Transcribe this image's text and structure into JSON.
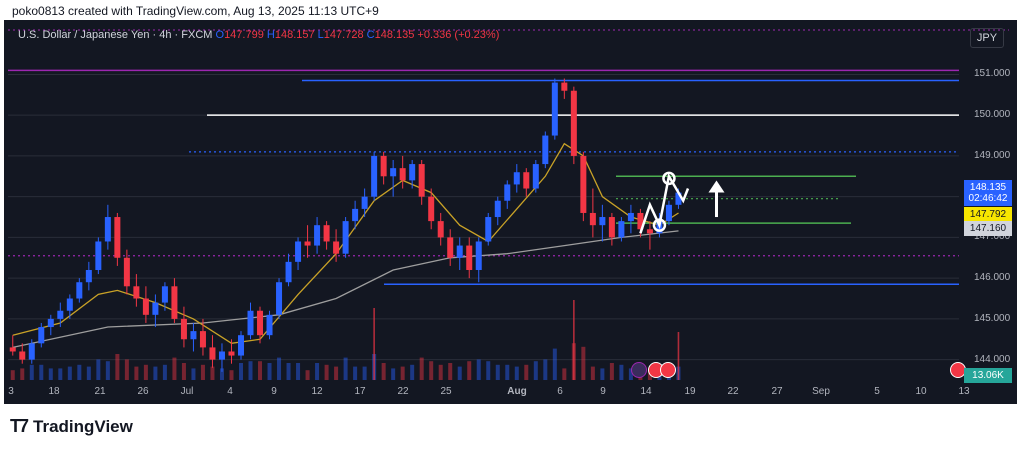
{
  "header_line": "poko0813 created with TradingView.com, Aug 13, 2025 11:13 UTC+9",
  "symbol": {
    "name": "U.S. Dollar / Japanese Yen · 4h · FXCM",
    "open_label": "O",
    "open": "147.799",
    "high_label": "H",
    "high": "148.157",
    "low_label": "L",
    "low": "147.728",
    "close_label": "C",
    "close": "148.135",
    "change": "+0.336 (+0.23%)"
  },
  "currency": "JPY",
  "brand": "TradingView",
  "volume_badge": "13.06K",
  "colors": {
    "up": "#2962ff",
    "down": "#f23645",
    "bg": "#131722",
    "ma_short": "#c9a227",
    "ma_long": "#9e9e9e"
  },
  "chart_data": {
    "type": "candlestick",
    "y_ticks": [
      "151.000",
      "150.000",
      "149.000",
      "148.000",
      "147.000",
      "146.000",
      "145.000",
      "144.000"
    ],
    "ylim": [
      143.5,
      151.6
    ],
    "x_ticks": [
      "3",
      "18",
      "21",
      "26",
      "Jul",
      "4",
      "9",
      "12",
      "17",
      "22",
      "25",
      "Aug",
      "6",
      "9",
      "14",
      "19",
      "22",
      "27",
      "Sep",
      "5",
      "10",
      "13"
    ],
    "price_tags": [
      {
        "value": "148.135",
        "extra": "02:46:42",
        "color": "#2962ff",
        "text_color": "#ffffff"
      },
      {
        "value": "147.792",
        "color": "#f7e600",
        "text_color": "#131722"
      },
      {
        "value": "147.160",
        "color": "#d1d4dc",
        "text_color": "#131722"
      }
    ],
    "horizontal_levels": [
      {
        "price": 151.1,
        "color": "#9c27b0",
        "style": "solid"
      },
      {
        "price": 150.85,
        "color": "#2962ff",
        "style": "solid"
      },
      {
        "price": 150.0,
        "color": "#ffffff",
        "style": "solid"
      },
      {
        "price": 149.1,
        "color": "#2962ff",
        "style": "dotted"
      },
      {
        "price": 148.5,
        "color": "#4caf50",
        "style": "solid"
      },
      {
        "price": 147.95,
        "color": "#4caf50",
        "style": "dotted"
      },
      {
        "price": 147.35,
        "color": "#4caf50",
        "style": "solid"
      },
      {
        "price": 146.55,
        "color": "#9c27b0",
        "style": "dotted"
      },
      {
        "price": 145.85,
        "color": "#2962ff",
        "style": "solid"
      }
    ],
    "candles": [
      [
        144.3,
        144.6,
        144.1,
        144.2
      ],
      [
        144.2,
        144.4,
        143.9,
        144.0
      ],
      [
        144.0,
        144.5,
        143.9,
        144.4
      ],
      [
        144.4,
        144.9,
        144.3,
        144.8
      ],
      [
        144.8,
        145.1,
        144.6,
        145.0
      ],
      [
        145.0,
        145.4,
        144.8,
        145.2
      ],
      [
        145.2,
        145.6,
        145.0,
        145.5
      ],
      [
        145.5,
        146.0,
        145.4,
        145.9
      ],
      [
        145.9,
        146.4,
        145.7,
        146.2
      ],
      [
        146.2,
        147.0,
        146.1,
        146.9
      ],
      [
        146.9,
        147.8,
        146.7,
        147.5
      ],
      [
        147.5,
        147.6,
        146.3,
        146.5
      ],
      [
        146.5,
        146.7,
        145.6,
        145.8
      ],
      [
        145.8,
        146.1,
        145.3,
        145.5
      ],
      [
        145.5,
        145.8,
        144.9,
        145.1
      ],
      [
        145.1,
        145.6,
        144.8,
        145.4
      ],
      [
        145.4,
        145.9,
        145.2,
        145.8
      ],
      [
        145.8,
        146.0,
        144.9,
        145.0
      ],
      [
        145.0,
        145.3,
        144.3,
        144.5
      ],
      [
        144.5,
        144.9,
        144.2,
        144.7
      ],
      [
        144.7,
        145.0,
        144.1,
        144.3
      ],
      [
        144.3,
        144.6,
        143.8,
        144.0
      ],
      [
        144.0,
        144.4,
        143.7,
        144.2
      ],
      [
        144.2,
        144.5,
        143.9,
        144.1
      ],
      [
        144.1,
        144.7,
        144.0,
        144.6
      ],
      [
        144.6,
        145.4,
        144.5,
        145.2
      ],
      [
        145.2,
        145.3,
        144.4,
        144.6
      ],
      [
        144.6,
        145.2,
        144.5,
        145.1
      ],
      [
        145.1,
        146.0,
        145.0,
        145.9
      ],
      [
        145.9,
        146.6,
        145.8,
        146.4
      ],
      [
        146.4,
        147.0,
        146.2,
        146.9
      ],
      [
        146.9,
        147.3,
        146.5,
        146.8
      ],
      [
        146.8,
        147.5,
        146.6,
        147.3
      ],
      [
        147.3,
        147.4,
        146.7,
        146.9
      ],
      [
        146.9,
        147.2,
        146.4,
        146.6
      ],
      [
        146.6,
        147.5,
        146.5,
        147.4
      ],
      [
        147.4,
        147.9,
        147.2,
        147.7
      ],
      [
        147.7,
        148.2,
        147.5,
        148.0
      ],
      [
        148.0,
        149.1,
        147.9,
        149.0
      ],
      [
        149.0,
        149.1,
        148.3,
        148.5
      ],
      [
        148.5,
        148.9,
        148.0,
        148.7
      ],
      [
        148.7,
        149.0,
        148.2,
        148.4
      ],
      [
        148.4,
        148.9,
        148.2,
        148.8
      ],
      [
        148.8,
        148.9,
        147.8,
        148.0
      ],
      [
        148.0,
        148.2,
        147.2,
        147.4
      ],
      [
        147.4,
        147.6,
        146.8,
        147.0
      ],
      [
        147.0,
        147.2,
        146.3,
        146.5
      ],
      [
        146.5,
        147.0,
        146.2,
        146.8
      ],
      [
        146.8,
        147.0,
        146.0,
        146.2
      ],
      [
        146.2,
        147.0,
        145.9,
        146.9
      ],
      [
        146.9,
        147.6,
        146.8,
        147.5
      ],
      [
        147.5,
        148.0,
        147.3,
        147.9
      ],
      [
        147.9,
        148.4,
        147.7,
        148.3
      ],
      [
        148.3,
        148.8,
        148.1,
        148.6
      ],
      [
        148.6,
        148.7,
        148.0,
        148.2
      ],
      [
        148.2,
        148.9,
        148.1,
        148.8
      ],
      [
        148.8,
        149.6,
        148.7,
        149.5
      ],
      [
        149.5,
        150.9,
        149.4,
        150.8
      ],
      [
        150.8,
        150.9,
        150.4,
        150.6
      ],
      [
        150.6,
        150.7,
        148.8,
        149.0
      ],
      [
        149.0,
        149.1,
        147.4,
        147.6
      ],
      [
        147.6,
        148.2,
        147.0,
        147.3
      ],
      [
        147.3,
        147.8,
        146.9,
        147.5
      ],
      [
        147.5,
        147.6,
        146.8,
        147.0
      ],
      [
        147.0,
        147.5,
        146.9,
        147.4
      ],
      [
        147.4,
        147.8,
        147.1,
        147.6
      ],
      [
        147.6,
        147.7,
        147.0,
        147.2
      ],
      [
        147.2,
        147.4,
        146.7,
        147.1
      ],
      [
        147.1,
        147.6,
        147.0,
        147.4
      ],
      [
        147.4,
        147.9,
        147.3,
        147.8
      ],
      [
        147.8,
        148.2,
        147.7,
        148.1
      ]
    ],
    "ma_short": [
      [
        0,
        144.6
      ],
      [
        5,
        144.9
      ],
      [
        9,
        145.6
      ],
      [
        11,
        145.7
      ],
      [
        15,
        145.4
      ],
      [
        19,
        145.0
      ],
      [
        23,
        144.4
      ],
      [
        26,
        144.5
      ],
      [
        30,
        145.6
      ],
      [
        34,
        146.6
      ],
      [
        38,
        147.9
      ],
      [
        41,
        148.4
      ],
      [
        44,
        148.1
      ],
      [
        47,
        147.3
      ],
      [
        50,
        146.9
      ],
      [
        53,
        147.7
      ],
      [
        56,
        148.5
      ],
      [
        58,
        149.3
      ],
      [
        60,
        149.0
      ],
      [
        62,
        148.0
      ],
      [
        65,
        147.5
      ],
      [
        68,
        147.3
      ],
      [
        70,
        147.6
      ]
    ],
    "ma_long": [
      [
        0,
        144.3
      ],
      [
        10,
        144.8
      ],
      [
        20,
        144.9
      ],
      [
        28,
        145.1
      ],
      [
        34,
        145.5
      ],
      [
        40,
        146.2
      ],
      [
        46,
        146.5
      ],
      [
        52,
        146.6
      ],
      [
        58,
        146.8
      ],
      [
        64,
        147.0
      ],
      [
        70,
        147.16
      ]
    ],
    "volume_spikes": [
      [
        38,
        0.9
      ],
      [
        59,
        1.0
      ],
      [
        70,
        0.6
      ]
    ],
    "projection_path": [
      [
        147.1,
        66
      ],
      [
        147.8,
        67
      ],
      [
        147.3,
        68
      ],
      [
        148.5,
        69
      ],
      [
        147.9,
        70.5
      ],
      [
        148.2,
        71
      ]
    ],
    "circles": [
      [
        148.45,
        69
      ],
      [
        147.3,
        68
      ]
    ],
    "arrow": {
      "x": 74,
      "from": 147.5,
      "to": 148.3
    }
  }
}
